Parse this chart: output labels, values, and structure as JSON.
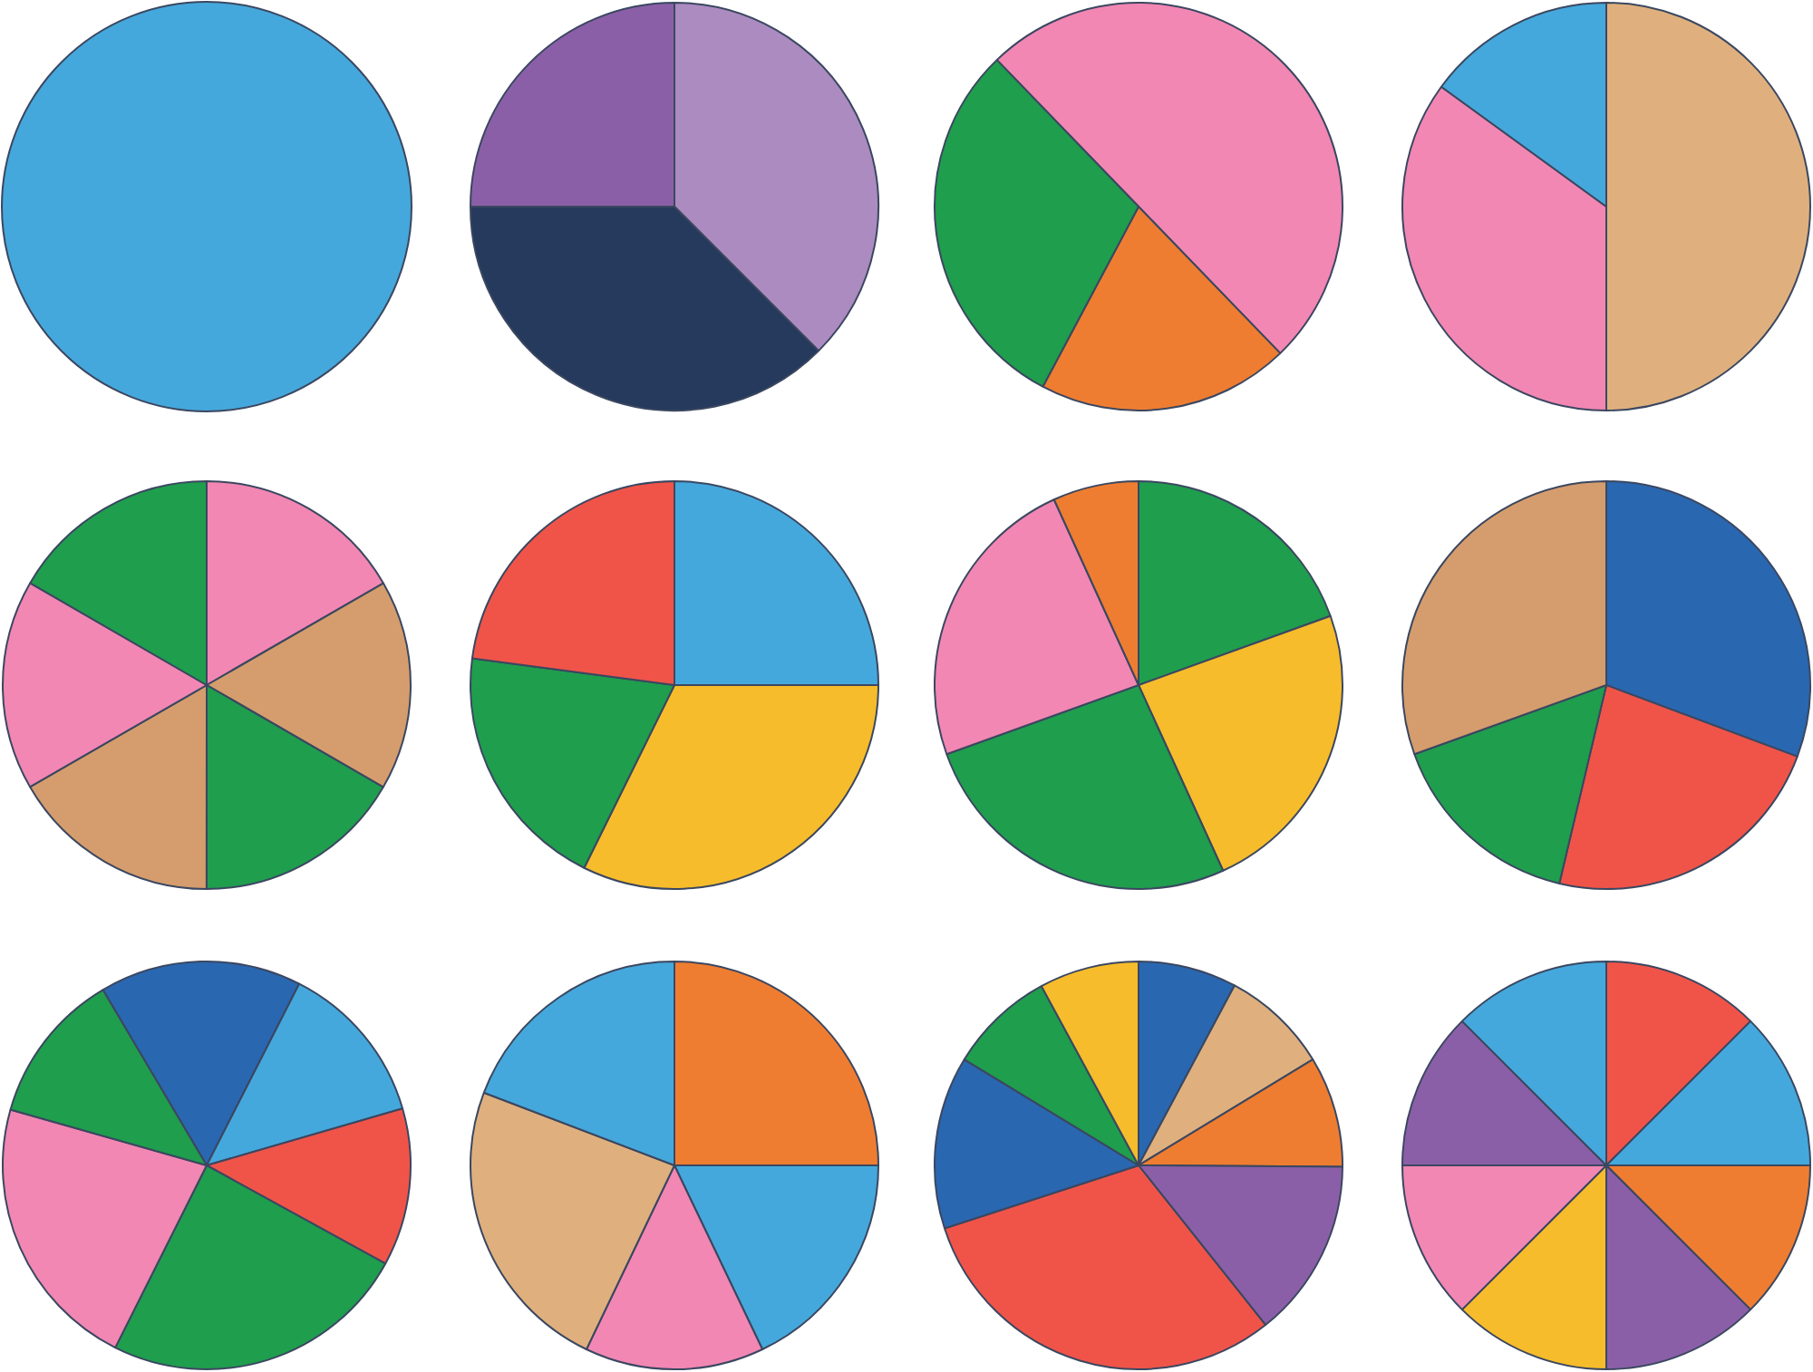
{
  "chart_data": [
    {
      "type": "pie",
      "categories": [
        null
      ],
      "values": [
        100
      ],
      "colors": [
        "#45a8dc"
      ]
    },
    {
      "type": "pie",
      "categories": [
        null,
        null,
        null
      ],
      "values": [
        37.5,
        37.5,
        25
      ],
      "colors": [
        "#ab8bc0",
        "#253a5c",
        "#8b5fa8"
      ]
    },
    {
      "type": "pie",
      "categories": [
        null,
        null,
        null
      ],
      "values": [
        50,
        20,
        30
      ],
      "colors": [
        "#f287b3",
        "#ef7d31",
        "#1f9e4e"
      ]
    },
    {
      "type": "pie",
      "categories": [
        null,
        null,
        null
      ],
      "values": [
        50,
        35,
        15
      ],
      "colors": [
        "#dfb07e",
        "#f287b3",
        "#45a8dc"
      ]
    },
    {
      "type": "pie",
      "categories": [
        null,
        null,
        null,
        null,
        null,
        null
      ],
      "values": [
        16.67,
        16.67,
        16.67,
        16.67,
        16.66,
        16.66
      ],
      "colors": [
        "#f287b3",
        "#d59d6d",
        "#1f9e4e",
        "#d59d6d",
        "#f287b3",
        "#1f9e4e"
      ]
    },
    {
      "type": "pie",
      "categories": [
        null,
        null,
        null,
        null
      ],
      "values": [
        25,
        32.3,
        19.8,
        22.9
      ],
      "colors": [
        "#45a8dc",
        "#f6bc2b",
        "#1f9e4e",
        "#f05449"
      ]
    },
    {
      "type": "pie",
      "categories": [
        null,
        null,
        null,
        null,
        null
      ],
      "values": [
        19.5,
        23.7,
        26.3,
        23.7,
        6.8
      ],
      "colors": [
        "#1f9e4e",
        "#f6bc2b",
        "#1f9e4e",
        "#f287b3",
        "#ef7d31"
      ]
    },
    {
      "type": "pie",
      "categories": [
        null,
        null,
        null,
        null
      ],
      "values": [
        30.7,
        23,
        15.8,
        30.5
      ],
      "colors": [
        "#2a67b1",
        "#f05449",
        "#1f9e4e",
        "#d59d6d"
      ]
    },
    {
      "type": "pie",
      "categories": [
        null,
        null,
        null,
        null,
        null,
        null
      ],
      "values": [
        16,
        13,
        12.5,
        24.4,
        22,
        12.1
      ],
      "colors": [
        "#2a67b1",
        "#45a8dc",
        "#f05449",
        "#1f9e4e",
        "#f287b3",
        "#1f9e4e"
      ]
    },
    {
      "type": "pie",
      "categories": [
        null,
        null,
        null,
        null,
        null
      ],
      "values": [
        25,
        17.9,
        14.2,
        23.7,
        19.2
      ],
      "colors": [
        "#ef7d31",
        "#45a8dc",
        "#f287b3",
        "#dfb07e",
        "#45a8dc"
      ]
    },
    {
      "type": "pie",
      "categories": [
        null,
        null,
        null,
        null,
        null,
        null,
        null,
        null
      ],
      "values": [
        7.8,
        8.5,
        8.8,
        14.2,
        30.7,
        13.7,
        8.4,
        7.9
      ],
      "colors": [
        "#2a67b1",
        "#dfb07e",
        "#ef7d31",
        "#8b5fa8",
        "#f05449",
        "#2a67b1",
        "#1f9e4e",
        "#f6bc2b"
      ]
    },
    {
      "type": "pie",
      "categories": [
        null,
        null,
        null,
        null,
        null,
        null,
        null,
        null
      ],
      "values": [
        12.5,
        12.5,
        12.5,
        12.5,
        12.5,
        12.5,
        12.5,
        12.5
      ],
      "colors": [
        "#f05449",
        "#45a8dc",
        "#ef7d31",
        "#8b5fa8",
        "#f6bc2b",
        "#f287b3",
        "#8b5fa8",
        "#45a8dc"
      ]
    }
  ]
}
